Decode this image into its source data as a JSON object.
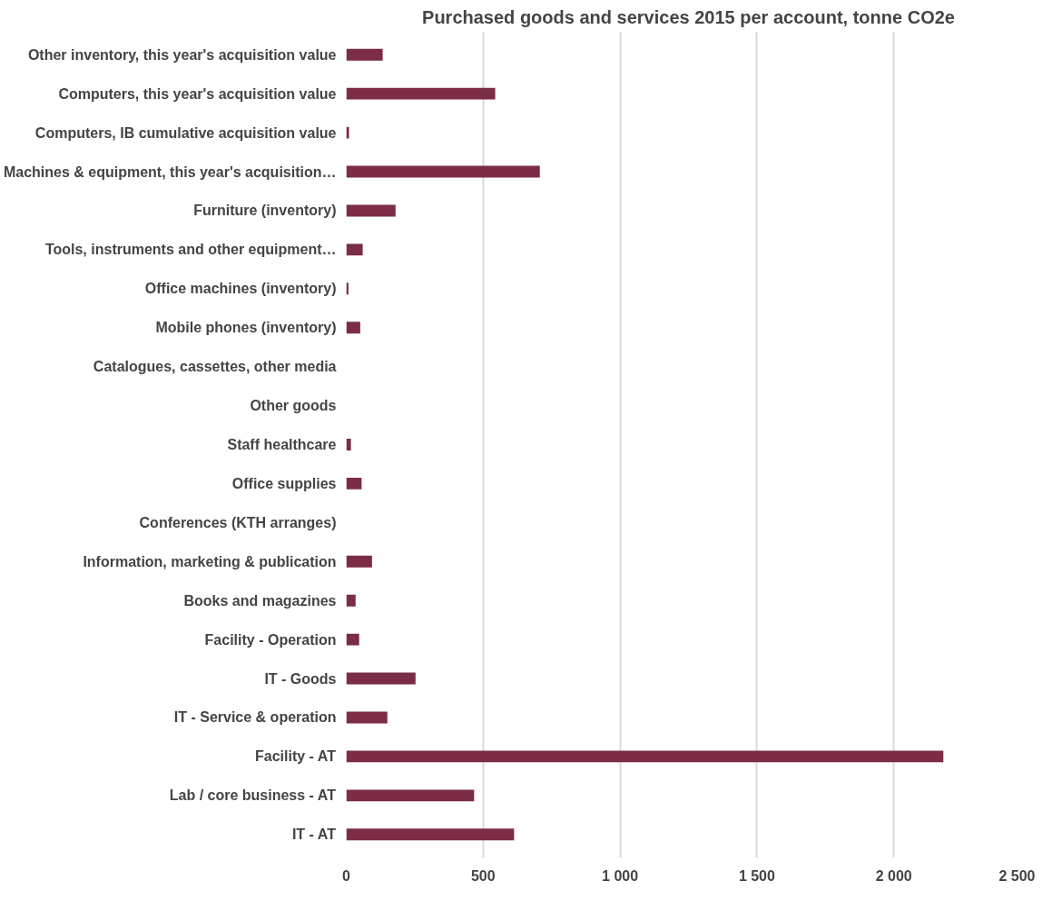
{
  "chart_data": {
    "type": "bar",
    "orientation": "horizontal",
    "title": "Purchased goods and services 2015 per account, tonne CO2e",
    "categories": [
      "Other inventory, this year's acquisition value",
      "Computers, this year's acquisition value",
      "Computers, IB cumulative acquisition value",
      "Machines & equipment, this year's acquisition…",
      "Furniture (inventory)",
      "Tools, instruments and other equipment…",
      "Office machines (inventory)",
      "Mobile phones (inventory)",
      "Catalogues, cassettes, other media",
      "Other goods",
      "Staff healthcare",
      "Office supplies",
      "Conferences (KTH arranges)",
      "Information, marketing & publication",
      "Books and magazines",
      "Facility - Operation",
      "IT - Goods",
      "IT - Service & operation",
      "Facility - AT",
      "Lab / core business - AT",
      "IT - AT"
    ],
    "values": [
      133,
      544,
      10,
      707,
      180,
      60,
      8,
      51,
      0,
      0,
      17,
      56,
      0,
      94,
      34,
      47,
      253,
      150,
      2181,
      467,
      613
    ],
    "color": "#7b2d45",
    "xlim": [
      0,
      2500
    ],
    "xticks": [
      0,
      500,
      {
        "value": 1000,
        "label": "1 000"
      },
      {
        "value": 1500,
        "label": "1 500"
      },
      {
        "value": 2000,
        "label": "2 000"
      },
      {
        "value": 2500,
        "label": "2 500"
      }
    ],
    "grid": "x"
  }
}
